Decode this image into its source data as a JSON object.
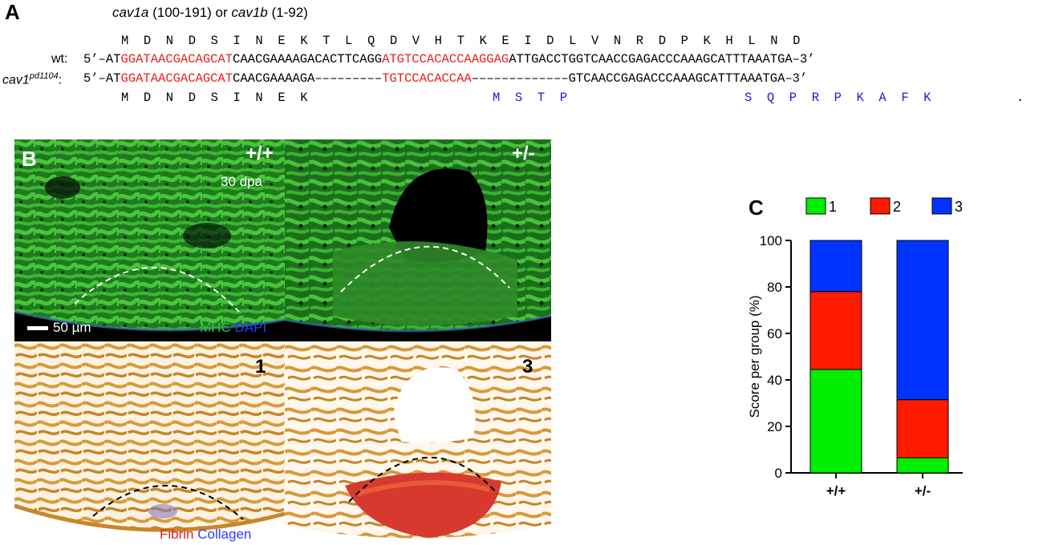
{
  "panel_a": {
    "letter": "A",
    "title_gene1": "cav1a",
    "title_range1": " (100-191) or ",
    "title_gene2": "cav1b",
    "title_range2": " (1-92)",
    "aa_top": "M  D  N  D  S  I  N  E  K  T  L  Q  D  V  H  T  K  E  I  D  L  V  N  R  D  P  K  H  L  N  D",
    "wt_label": "wt:",
    "wt_seq": {
      "p1": "5’–AT",
      "p2": "GGATAACGACAGCAT",
      "p3": "CAACGAAAAGACACTTCAGG",
      "p4": "ATGTCCACACCAAGGAG",
      "p5": "ATTGACCTGGTCAACCGAGACCCAAAGCATTTAAATGA–3’"
    },
    "mut_label_main": "cav1",
    "mut_label_sup": "pd1104",
    "mut_label_colon": ":",
    "mut_seq": {
      "p1": "5’–AT",
      "p2": "GGATAACGACAGCAT",
      "p3": "CAACGAAAAGA–––––––––",
      "p4": "TGTCCACACCAA",
      "p5": "–––––––––––––GTCAACCGAGACCCAAAGCATTTAAATGA–3’"
    },
    "aa_bottom_black": "M  D  N  D  S  I  N  E  K",
    "aa_bottom_blue1": "M  S  T  P",
    "aa_bottom_blue2": "S  Q  P  R  P  K  A  F  K",
    "aa_bottom_stop": "."
  },
  "panel_b": {
    "letter": "B",
    "genotype_left": "+/+",
    "genotype_right": "+/-",
    "timepoint": "30 dpa",
    "scalebar": "50 µm",
    "stain_mhc": "MHC",
    "stain_dapi": "DAPI",
    "score_left": "1",
    "score_right": "3",
    "stain_fibrin": "Fibrin",
    "stain_collagen": "Collagen"
  },
  "chart_data": {
    "type": "bar",
    "stacked": true,
    "panel_letter": "C",
    "categories": [
      "+/+",
      "+/-"
    ],
    "series": [
      {
        "name": "1",
        "color": "#00ee00",
        "values": [
          44.5,
          6.5
        ]
      },
      {
        "name": "2",
        "color": "#ff1a00",
        "values": [
          33.5,
          25
        ]
      },
      {
        "name": "3",
        "color": "#0033ff",
        "values": [
          22,
          68.5
        ]
      }
    ],
    "ylabel": "Score per group (%)",
    "xlabel": "",
    "ylim": [
      0,
      100
    ],
    "yticks": [
      0,
      20,
      40,
      60,
      80,
      100
    ],
    "legend_position": "top",
    "grid": false
  }
}
